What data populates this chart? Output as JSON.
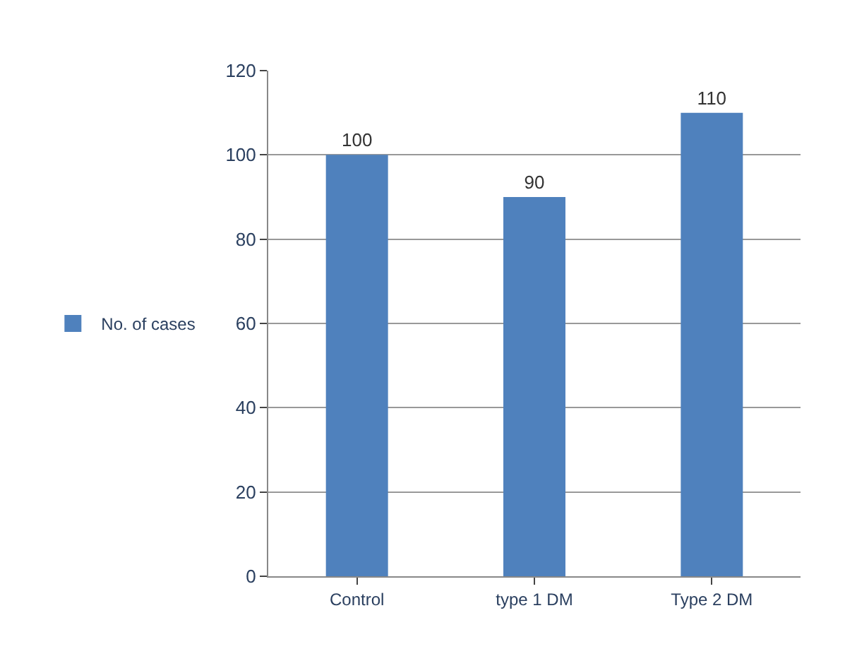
{
  "chart_data": {
    "type": "bar",
    "categories": [
      "Control",
      "type 1 DM",
      "Type 2 DM"
    ],
    "series": [
      {
        "name": "No. of cases",
        "color": "#4f81bd",
        "values": [
          100,
          90,
          110
        ]
      }
    ],
    "ylim": [
      0,
      120
    ],
    "yticks": [
      0,
      20,
      40,
      60,
      80,
      100,
      120
    ],
    "grid": "y",
    "legend": "left",
    "data_labels": true
  }
}
